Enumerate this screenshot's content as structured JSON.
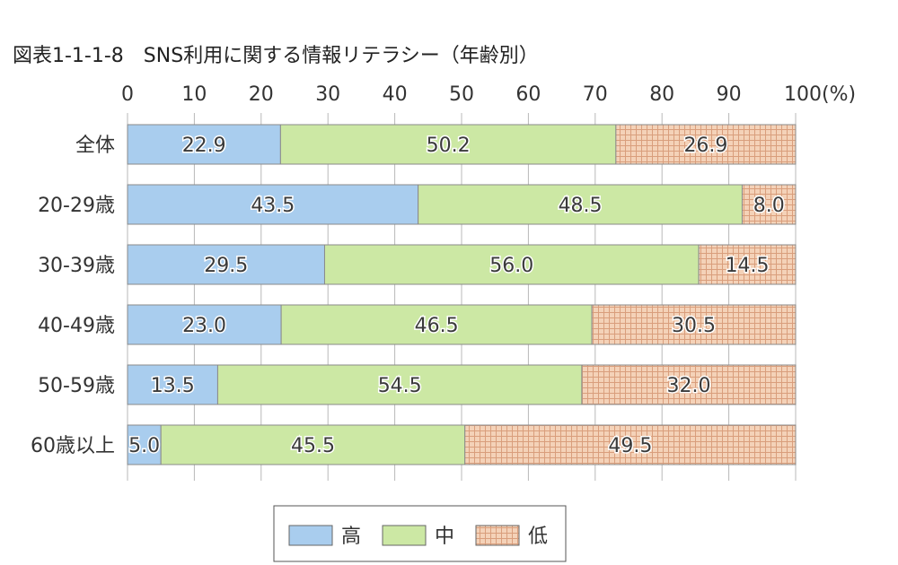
{
  "title": "図表1-1-1-8　SNS利用に関する情報リテラシー（年齢別）",
  "chart_data": {
    "type": "bar",
    "orientation": "horizontal",
    "stacked": true,
    "categories": [
      "全体",
      "20-29歳",
      "30-39歳",
      "40-49歳",
      "50-59歳",
      "60歳以上"
    ],
    "series": [
      {
        "name": "高",
        "values": [
          22.9,
          43.5,
          29.5,
          23.0,
          13.5,
          5.0
        ],
        "color": "#a9cdee",
        "pattern": "none"
      },
      {
        "name": "中",
        "values": [
          50.2,
          48.5,
          56.0,
          46.5,
          54.5,
          45.5
        ],
        "color": "#cce8a4",
        "pattern": "none"
      },
      {
        "name": "低",
        "values": [
          26.9,
          8.0,
          14.5,
          30.5,
          32.0,
          49.5
        ],
        "color": "#f4d2b8",
        "pattern": "grid"
      }
    ],
    "xlim": [
      0,
      100
    ],
    "xticks": [
      0,
      10,
      20,
      30,
      40,
      50,
      60,
      70,
      80,
      90,
      100
    ],
    "xtick_labels": [
      "0",
      "10",
      "20",
      "30",
      "40",
      "50",
      "60",
      "70",
      "80",
      "90",
      "100(%)"
    ],
    "axis_position": "top",
    "grid": true,
    "legend": "bottom-center"
  }
}
